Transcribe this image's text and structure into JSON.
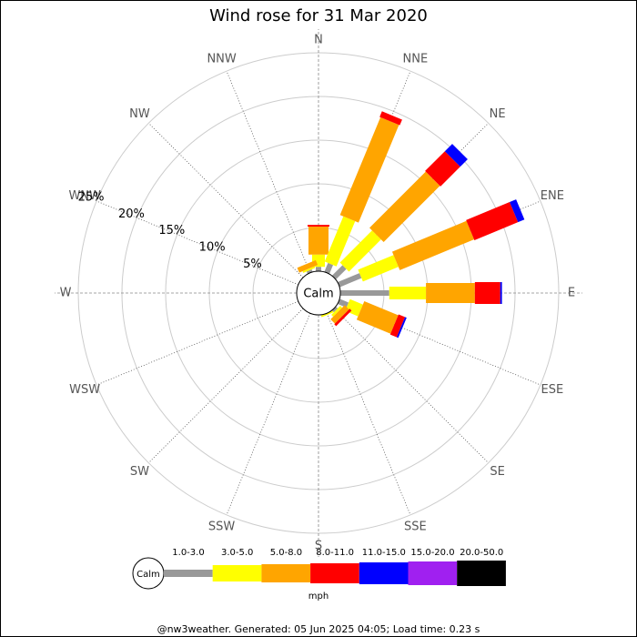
{
  "chart_data": {
    "type": "windrose",
    "title": "Wind rose for 31 Mar 2020",
    "directions": [
      "N",
      "NNE",
      "NE",
      "ENE",
      "E",
      "ESE",
      "SE",
      "SSE",
      "S",
      "SSW",
      "SW",
      "WSW",
      "W",
      "WNW",
      "NW",
      "NNW"
    ],
    "calm_label": "Calm",
    "units": "mph",
    "rlim": [
      0,
      25
    ],
    "rticks": [
      {
        "value": 5,
        "label": "5%"
      },
      {
        "value": 10,
        "label": "10%"
      },
      {
        "value": 15,
        "label": "15%"
      },
      {
        "value": 20,
        "label": "20%"
      },
      {
        "value": 25,
        "label": "25%"
      }
    ],
    "series": [
      {
        "name": "1.0-3.0",
        "color": "#999999",
        "values": [
          0.5,
          1.1,
          1.7,
          2.7,
          5.6,
          1.1,
          0.3,
          0,
          0,
          0,
          0,
          0,
          0,
          0,
          0,
          0.3
        ]
      },
      {
        "name": "3.0-5.0",
        "color": "#ffff00",
        "values": [
          1.4,
          5.6,
          5.2,
          4.4,
          4.2,
          1.6,
          0.3,
          0.2,
          0,
          0,
          0,
          0,
          0,
          0,
          0,
          0.2
        ]
      },
      {
        "name": "5.0-8.0",
        "color": "#ffa500",
        "values": [
          3.2,
          12.1,
          9.1,
          9.2,
          5.6,
          4.2,
          0.7,
          0,
          0,
          0,
          0,
          0,
          0,
          0,
          0,
          0.6
        ]
      },
      {
        "name": "8.0-11.0",
        "color": "#ff0000",
        "values": [
          0.2,
          0.7,
          3.2,
          5.4,
          2.9,
          0.8,
          0.3,
          0,
          0,
          0,
          0,
          0,
          0,
          0,
          0,
          0
        ]
      },
      {
        "name": "11.0-15.0",
        "color": "#0000ff",
        "values": [
          0,
          0,
          1.2,
          0.8,
          0.2,
          0.2,
          0,
          0,
          0,
          0,
          0,
          0,
          0,
          0,
          0,
          0
        ]
      },
      {
        "name": "15.0-20.0",
        "color": "#a020f0",
        "values": [
          0,
          0,
          0,
          0,
          0,
          0,
          0,
          0,
          0,
          0,
          0,
          0,
          0,
          0,
          0,
          0
        ]
      },
      {
        "name": "20.0-50.0",
        "color": "#000000",
        "values": [
          0,
          0,
          0,
          0,
          0,
          0,
          0,
          0,
          0,
          0,
          0,
          0,
          0,
          0,
          0,
          0
        ]
      }
    ]
  },
  "footer": "@nw3weather. Generated: 05 Jun 2025 04:05; Load time: 0.23 s"
}
